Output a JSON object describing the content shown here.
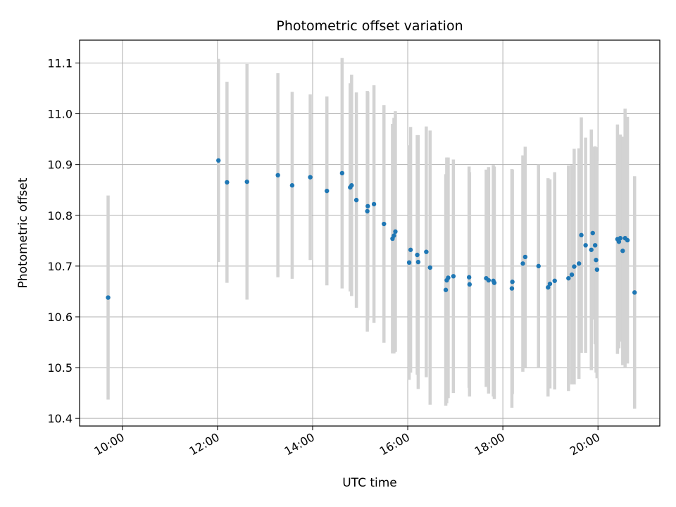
{
  "chart_data": {
    "type": "scatter",
    "title": "Photometric offset variation",
    "xlabel": "UTC time",
    "ylabel": "Photometric offset",
    "x_unit": "hours",
    "xlim": [
      9.1,
      21.3
    ],
    "ylim": [
      10.385,
      11.145
    ],
    "x_ticks": [
      {
        "value": 10,
        "label": "10:00"
      },
      {
        "value": 12,
        "label": "12:00"
      },
      {
        "value": 14,
        "label": "14:00"
      },
      {
        "value": 16,
        "label": "16:00"
      },
      {
        "value": 18,
        "label": "18:00"
      },
      {
        "value": 20,
        "label": "20:00"
      }
    ],
    "y_ticks": [
      {
        "value": 10.4,
        "label": "10.4"
      },
      {
        "value": 10.5,
        "label": "10.5"
      },
      {
        "value": 10.6,
        "label": "10.6"
      },
      {
        "value": 10.7,
        "label": "10.7"
      },
      {
        "value": 10.8,
        "label": "10.8"
      },
      {
        "value": 10.9,
        "label": "10.9"
      },
      {
        "value": 11.0,
        "label": "11.0"
      },
      {
        "value": 11.1,
        "label": "11.1"
      }
    ],
    "grid": true,
    "colors": {
      "point": "#1f77b4",
      "errorbar": "#d3d3d3",
      "grid": "#b0b0b0"
    },
    "points": [
      {
        "x": 9.7,
        "y": 10.638,
        "yerr": 0.201
      },
      {
        "x": 12.02,
        "y": 10.908,
        "yerr": 0.2
      },
      {
        "x": 12.2,
        "y": 10.865,
        "yerr": 0.198
      },
      {
        "x": 12.62,
        "y": 10.866,
        "yerr": 0.232
      },
      {
        "x": 13.27,
        "y": 10.879,
        "yerr": 0.201
      },
      {
        "x": 13.57,
        "y": 10.859,
        "yerr": 0.184
      },
      {
        "x": 13.95,
        "y": 10.875,
        "yerr": 0.163
      },
      {
        "x": 14.3,
        "y": 10.848,
        "yerr": 0.186
      },
      {
        "x": 14.62,
        "y": 10.883,
        "yerr": 0.227
      },
      {
        "x": 14.79,
        "y": 10.855,
        "yerr": 0.205
      },
      {
        "x": 14.82,
        "y": 10.859,
        "yerr": 0.218
      },
      {
        "x": 14.92,
        "y": 10.83,
        "yerr": 0.212
      },
      {
        "x": 15.15,
        "y": 10.808,
        "yerr": 0.237
      },
      {
        "x": 15.16,
        "y": 10.818,
        "yerr": 0.225
      },
      {
        "x": 15.29,
        "y": 10.822,
        "yerr": 0.234
      },
      {
        "x": 15.5,
        "y": 10.783,
        "yerr": 0.234
      },
      {
        "x": 15.68,
        "y": 10.754,
        "yerr": 0.226
      },
      {
        "x": 15.71,
        "y": 10.76,
        "yerr": 0.232
      },
      {
        "x": 15.74,
        "y": 10.768,
        "yerr": 0.237
      },
      {
        "x": 16.03,
        "y": 10.707,
        "yerr": 0.231
      },
      {
        "x": 16.06,
        "y": 10.732,
        "yerr": 0.242
      },
      {
        "x": 16.2,
        "y": 10.722,
        "yerr": 0.236
      },
      {
        "x": 16.22,
        "y": 10.708,
        "yerr": 0.25
      },
      {
        "x": 16.39,
        "y": 10.728,
        "yerr": 0.247
      },
      {
        "x": 16.47,
        "y": 10.697,
        "yerr": 0.27
      },
      {
        "x": 16.8,
        "y": 10.653,
        "yerr": 0.228
      },
      {
        "x": 16.82,
        "y": 10.672,
        "yerr": 0.242
      },
      {
        "x": 16.85,
        "y": 10.677,
        "yerr": 0.237
      },
      {
        "x": 16.96,
        "y": 10.68,
        "yerr": 0.23
      },
      {
        "x": 17.29,
        "y": 10.678,
        "yerr": 0.218
      },
      {
        "x": 17.3,
        "y": 10.664,
        "yerr": 0.221
      },
      {
        "x": 17.65,
        "y": 10.676,
        "yerr": 0.214
      },
      {
        "x": 17.7,
        "y": 10.672,
        "yerr": 0.223
      },
      {
        "x": 17.8,
        "y": 10.671,
        "yerr": 0.228
      },
      {
        "x": 17.82,
        "y": 10.667,
        "yerr": 0.229
      },
      {
        "x": 18.19,
        "y": 10.656,
        "yerr": 0.235
      },
      {
        "x": 18.2,
        "y": 10.669,
        "yerr": 0.221
      },
      {
        "x": 18.42,
        "y": 10.705,
        "yerr": 0.213
      },
      {
        "x": 18.47,
        "y": 10.718,
        "yerr": 0.217
      },
      {
        "x": 18.75,
        "y": 10.7,
        "yerr": 0.2
      },
      {
        "x": 18.95,
        "y": 10.658,
        "yerr": 0.215
      },
      {
        "x": 18.99,
        "y": 10.665,
        "yerr": 0.206
      },
      {
        "x": 19.09,
        "y": 10.671,
        "yerr": 0.214
      },
      {
        "x": 19.38,
        "y": 10.676,
        "yerr": 0.222
      },
      {
        "x": 19.45,
        "y": 10.683,
        "yerr": 0.216
      },
      {
        "x": 19.5,
        "y": 10.699,
        "yerr": 0.232
      },
      {
        "x": 19.6,
        "y": 10.705,
        "yerr": 0.227
      },
      {
        "x": 19.65,
        "y": 10.761,
        "yerr": 0.232
      },
      {
        "x": 19.74,
        "y": 10.741,
        "yerr": 0.212
      },
      {
        "x": 19.86,
        "y": 10.732,
        "yerr": 0.237
      },
      {
        "x": 19.89,
        "y": 10.765,
        "yerr": 0.17
      },
      {
        "x": 19.94,
        "y": 10.741,
        "yerr": 0.195
      },
      {
        "x": 19.96,
        "y": 10.712,
        "yerr": 0.222
      },
      {
        "x": 19.98,
        "y": 10.693,
        "yerr": 0.214
      },
      {
        "x": 20.41,
        "y": 10.753,
        "yerr": 0.226
      },
      {
        "x": 20.44,
        "y": 10.748,
        "yerr": 0.21
      },
      {
        "x": 20.47,
        "y": 10.755,
        "yerr": 0.204
      },
      {
        "x": 20.52,
        "y": 10.73,
        "yerr": 0.225
      },
      {
        "x": 20.57,
        "y": 10.755,
        "yerr": 0.255
      },
      {
        "x": 20.62,
        "y": 10.751,
        "yerr": 0.243
      },
      {
        "x": 20.77,
        "y": 10.648,
        "yerr": 0.229
      }
    ]
  }
}
